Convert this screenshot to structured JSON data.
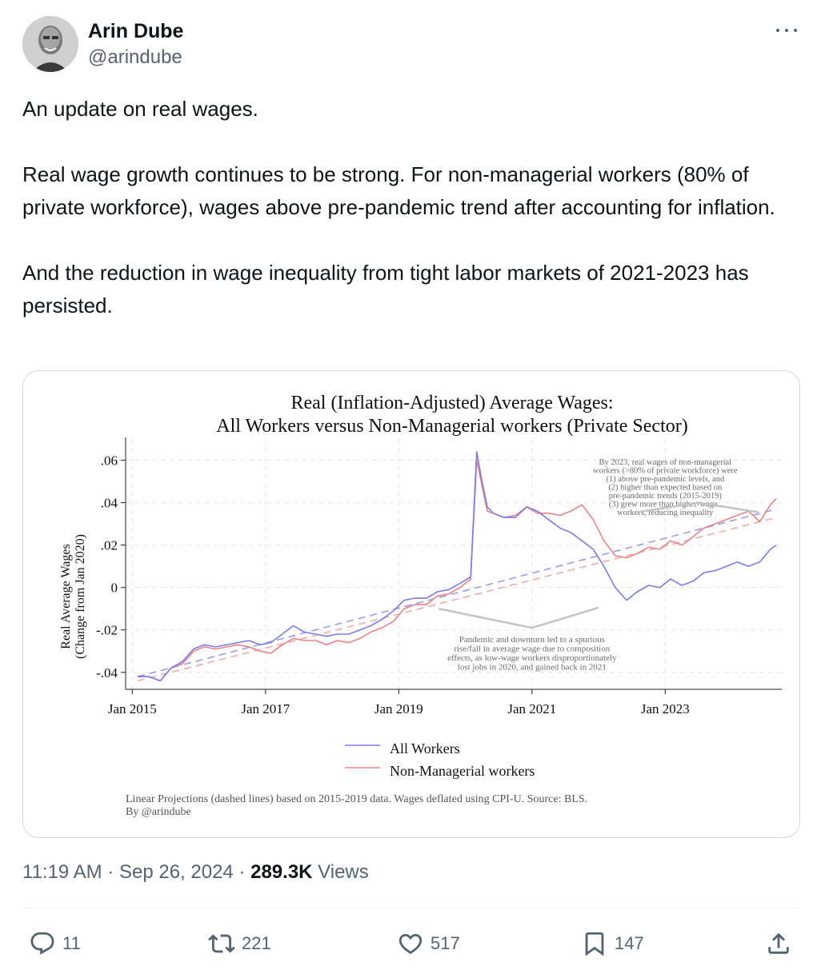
{
  "author": {
    "display_name": "Arin Dube",
    "handle": "@arindube"
  },
  "tweet": {
    "paragraphs": [
      "An update on real wages.",
      "Real wage growth continues to be strong. For non-managerial workers (80% of private workforce), wages above pre-pandemic trend after accounting for inflation.",
      "And the reduction in wage inequality from tight labor markets of 2021-2023 has persisted."
    ]
  },
  "chart_data": {
    "type": "line",
    "title": "Real (Inflation-Adjusted) Average Wages:",
    "subtitle": "All Workers versus Non-Managerial workers (Private Sector)",
    "ylabel": [
      "Real Average Wages",
      "(Change from Jan 2020)"
    ],
    "xlabel": "",
    "x_ticks": [
      "Jan 2015",
      "Jan 2017",
      "Jan 2019",
      "Jan 2021",
      "Jan 2023"
    ],
    "x_tick_values": [
      2015,
      2017,
      2019,
      2021,
      2023
    ],
    "y_ticks": [
      ".06",
      ".04",
      ".02",
      "0",
      "-.02",
      "-.04"
    ],
    "y_tick_values": [
      0.06,
      0.04,
      0.02,
      0,
      -0.02,
      -0.04
    ],
    "xlim": [
      2014.9,
      2024.75
    ],
    "ylim": [
      -0.048,
      0.07
    ],
    "grid": true,
    "series": [
      {
        "name": "All Workers",
        "color": "#7b7bf0",
        "x": [
          2015.08,
          2015.25,
          2015.42,
          2015.58,
          2015.75,
          2015.92,
          2016.08,
          2016.25,
          2016.42,
          2016.58,
          2016.75,
          2016.92,
          2017.08,
          2017.25,
          2017.42,
          2017.58,
          2017.75,
          2017.92,
          2018.08,
          2018.25,
          2018.42,
          2018.58,
          2018.75,
          2018.92,
          2019.08,
          2019.25,
          2019.42,
          2019.58,
          2019.75,
          2019.92,
          2020.08,
          2020.17,
          2020.25,
          2020.33,
          2020.42,
          2020.58,
          2020.75,
          2020.92,
          2021.08,
          2021.25,
          2021.42,
          2021.58,
          2021.75,
          2021.92,
          2022.08,
          2022.25,
          2022.42,
          2022.58,
          2022.75,
          2022.92,
          2023.08,
          2023.25,
          2023.42,
          2023.58,
          2023.75,
          2023.92,
          2024.08,
          2024.25,
          2024.42,
          2024.58,
          2024.67
        ],
        "values": [
          -0.042,
          -0.042,
          -0.044,
          -0.038,
          -0.035,
          -0.029,
          -0.027,
          -0.028,
          -0.027,
          -0.026,
          -0.025,
          -0.027,
          -0.026,
          -0.022,
          -0.018,
          -0.021,
          -0.022,
          -0.023,
          -0.022,
          -0.022,
          -0.02,
          -0.018,
          -0.015,
          -0.011,
          -0.006,
          -0.005,
          -0.005,
          -0.002,
          -0.001,
          0.002,
          0.005,
          0.064,
          0.05,
          0.038,
          0.035,
          0.033,
          0.033,
          0.038,
          0.036,
          0.032,
          0.028,
          0.026,
          0.022,
          0.018,
          0.01,
          0.0,
          -0.006,
          -0.002,
          0.001,
          0.0,
          0.004,
          0.001,
          0.003,
          0.007,
          0.008,
          0.01,
          0.012,
          0.01,
          0.012,
          0.018,
          0.02
        ]
      },
      {
        "name": "Non-Managerial workers",
        "color": "#f08080",
        "x": [
          2015.08,
          2015.25,
          2015.42,
          2015.58,
          2015.75,
          2015.92,
          2016.08,
          2016.25,
          2016.42,
          2016.58,
          2016.75,
          2016.92,
          2017.08,
          2017.25,
          2017.42,
          2017.58,
          2017.75,
          2017.92,
          2018.08,
          2018.25,
          2018.42,
          2018.58,
          2018.75,
          2018.92,
          2019.08,
          2019.25,
          2019.42,
          2019.58,
          2019.75,
          2019.92,
          2020.08,
          2020.17,
          2020.25,
          2020.33,
          2020.42,
          2020.58,
          2020.75,
          2020.92,
          2021.08,
          2021.25,
          2021.42,
          2021.58,
          2021.75,
          2021.92,
          2022.08,
          2022.25,
          2022.42,
          2022.58,
          2022.75,
          2022.92,
          2023.08,
          2023.25,
          2023.42,
          2023.58,
          2023.75,
          2023.92,
          2024.08,
          2024.25,
          2024.42,
          2024.58,
          2024.67
        ],
        "values": [
          -0.042,
          -0.042,
          -0.044,
          -0.038,
          -0.036,
          -0.03,
          -0.028,
          -0.029,
          -0.028,
          -0.027,
          -0.028,
          -0.03,
          -0.031,
          -0.027,
          -0.024,
          -0.025,
          -0.025,
          -0.027,
          -0.025,
          -0.026,
          -0.024,
          -0.021,
          -0.019,
          -0.016,
          -0.01,
          -0.008,
          -0.008,
          -0.004,
          -0.003,
          0.0,
          0.004,
          0.06,
          0.048,
          0.036,
          0.035,
          0.033,
          0.034,
          0.038,
          0.035,
          0.035,
          0.034,
          0.036,
          0.039,
          0.032,
          0.022,
          0.015,
          0.014,
          0.016,
          0.019,
          0.018,
          0.022,
          0.02,
          0.024,
          0.028,
          0.03,
          0.032,
          0.034,
          0.036,
          0.031,
          0.039,
          0.042
        ]
      }
    ],
    "projections": [
      {
        "series": "All Workers",
        "style": "dashed",
        "color": "#9a9af5",
        "x": [
          2015.08,
          2024.67
        ],
        "values": [
          -0.042,
          0.037
        ]
      },
      {
        "series": "Non-Managerial workers",
        "style": "dashed",
        "color": "#f5a8a8",
        "x": [
          2015.08,
          2024.67
        ],
        "values": [
          -0.044,
          0.033
        ]
      }
    ],
    "annotations": [
      {
        "lines": [
          "By 2023, real wages of non-managerial",
          "workers (>80% of private workforce) were",
          "(1) above pre-pandemic levels, and",
          "(2) higher than expected based on",
          "pre-pandemic trends (2015-2019)",
          "(3) grew more than higher-wage ,",
          "workers, reducing inequality"
        ],
        "x": 2023.0,
        "y": 0.058
      },
      {
        "lines": [
          "Pandemic and downturn led to a spurious",
          "rise/fall in average wage due to composition",
          "effects, as low-wage workers disproportionately",
          "lost jobs in 2020, and gained back in 2021"
        ],
        "x": 2021.0,
        "y": -0.022
      }
    ],
    "legend": {
      "placement": "bottom-center",
      "entries": [
        "All Workers",
        "Non-Managerial workers"
      ]
    },
    "notes": [
      "Linear Projections (dashed lines) based on 2015-2019 data. Wages deflated using CPI-U. Source: BLS.",
      "By @arindube"
    ]
  },
  "meta": {
    "time": "11:19 AM",
    "date": "Sep 26, 2024",
    "views_count": "289.3K",
    "views_label": "Views"
  },
  "actions": {
    "replies": "11",
    "reposts": "221",
    "likes": "517",
    "bookmarks": "147"
  },
  "icons": {
    "more": "more-horizontal-icon",
    "reply": "reply-icon",
    "repost": "repost-icon",
    "like": "heart-icon",
    "bookmark": "bookmark-icon",
    "share": "share-icon"
  },
  "colors": {
    "text_primary": "#0f1419",
    "text_secondary": "#536471",
    "border": "#cfd9de"
  }
}
